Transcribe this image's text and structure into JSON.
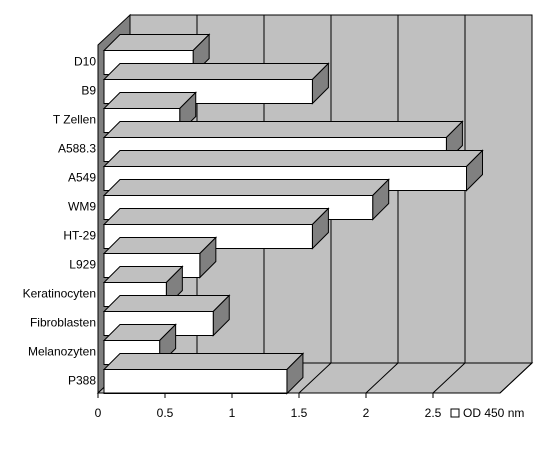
{
  "chart_data": {
    "type": "bar",
    "orientation": "horizontal",
    "style": "3d",
    "categories": [
      "D10",
      "B9",
      "T Zellen",
      "A588.3",
      "A549",
      "WM9",
      "HT-29",
      "L929",
      "Keratinocyten",
      "Fibroblasten",
      "Melanozyten",
      "P388"
    ],
    "series": [
      {
        "name": "OD 450 nm",
        "values": [
          0.71,
          1.6,
          0.61,
          2.6,
          2.75,
          2.05,
          1.6,
          0.76,
          0.51,
          0.86,
          0.46,
          1.41
        ]
      }
    ],
    "xlim": [
      0,
      3
    ],
    "xticks": [
      "0",
      "0.5",
      "1",
      "1.5",
      "2",
      "2.5"
    ],
    "grid": "vertical",
    "legend": "bottom-right",
    "colors": {
      "bar_face": "#ffffff",
      "bar_top": "#c0c0c0",
      "bar_side": "#808080",
      "wall": "#c0c0c0",
      "floor": "#808080",
      "stroke": "#000000"
    }
  }
}
